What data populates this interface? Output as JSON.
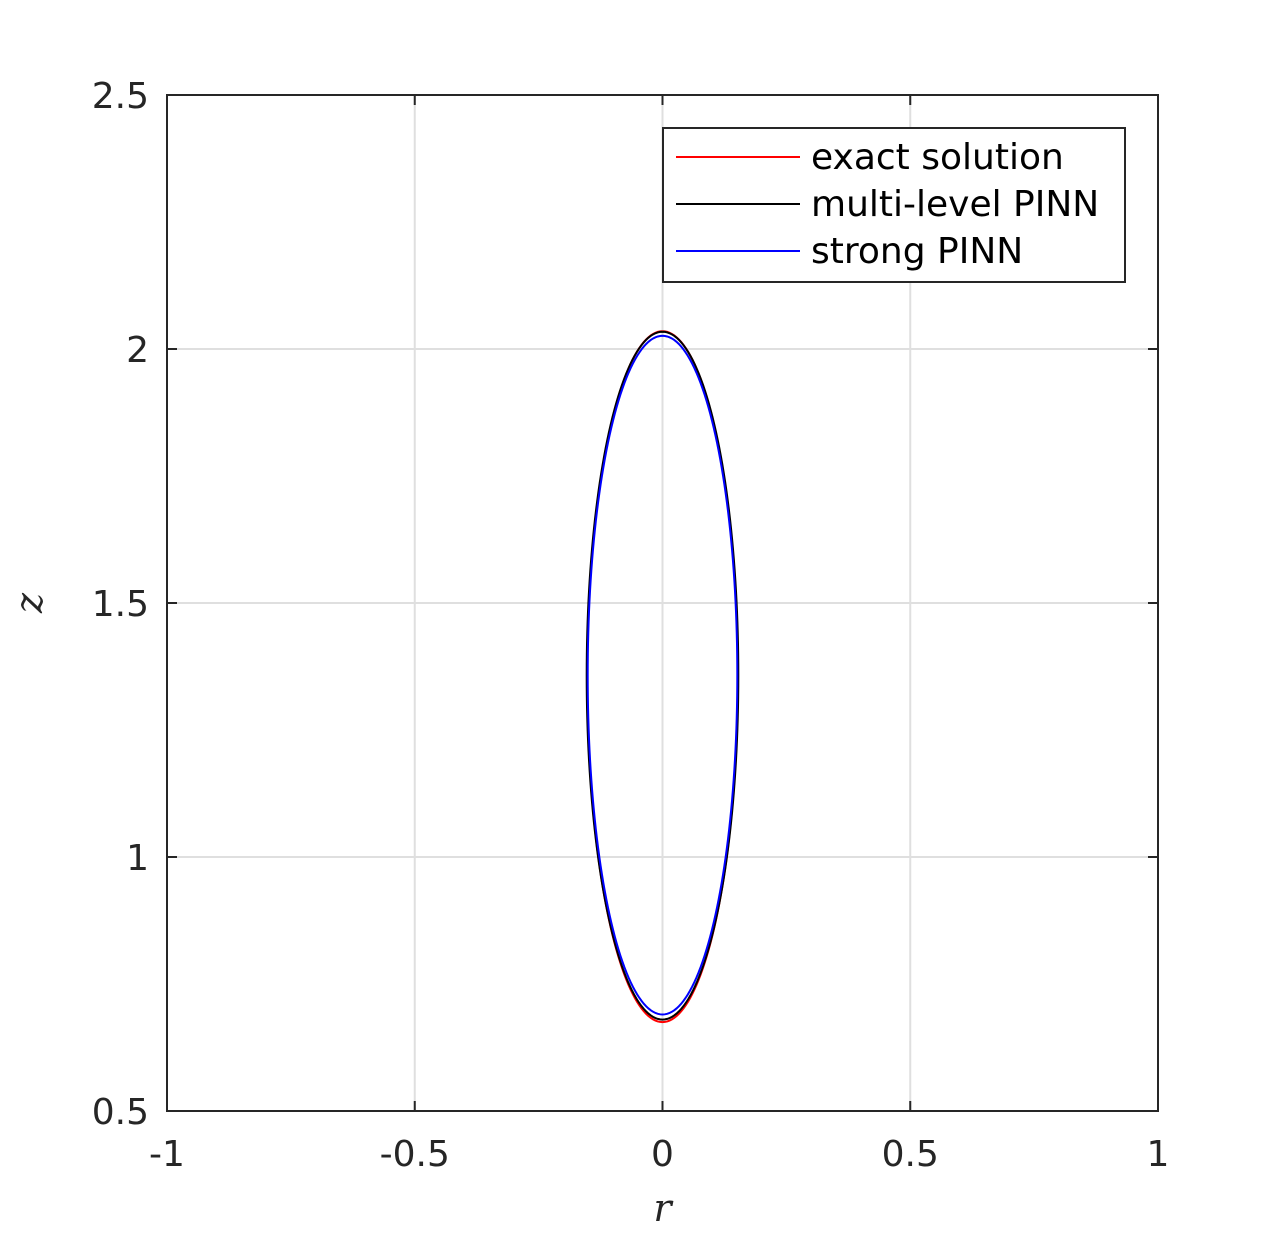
{
  "chart_data": {
    "type": "line",
    "xlabel": "r",
    "ylabel": "z",
    "xlim": [
      -1,
      1
    ],
    "ylim": [
      0.5,
      2.5
    ],
    "xticks": [
      -1,
      -0.5,
      0,
      0.5,
      1
    ],
    "xtick_labels": [
      "-1",
      "-0.5",
      "0",
      "0.5",
      "1"
    ],
    "yticks": [
      0.5,
      1,
      1.5,
      2,
      2.5
    ],
    "ytick_labels": [
      "0.5",
      "1",
      "1.5",
      "2",
      "2.5"
    ],
    "grid": true,
    "legend_placement": "top-right",
    "series": [
      {
        "name": "exact solution",
        "color": "#ff0000",
        "shape": "ellipse",
        "center": [
          0,
          1.355
        ],
        "radius_r": 0.152,
        "radius_z": 0.68
      },
      {
        "name": "multi-level PINN",
        "color": "#000000",
        "shape": "ellipse",
        "center": [
          0,
          1.357
        ],
        "radius_r": 0.153,
        "radius_z": 0.677
      },
      {
        "name": "strong PINN",
        "color": "#0000ff",
        "shape": "ellipse",
        "center": [
          0,
          1.358
        ],
        "radius_r": 0.151,
        "radius_z": 0.668
      }
    ]
  }
}
